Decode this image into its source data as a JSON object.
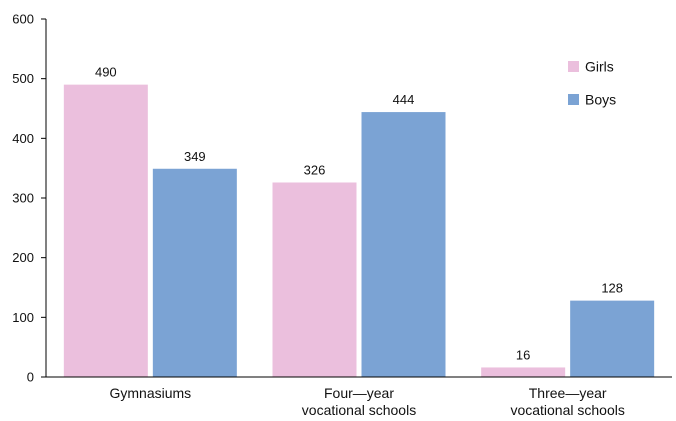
{
  "chart_data": {
    "type": "bar",
    "title": "",
    "xlabel": "",
    "ylabel": "",
    "categories": [
      [
        "Gymnasiums"
      ],
      [
        "Four—year",
        "vocational schools"
      ],
      [
        "Three—year",
        "vocational schools"
      ]
    ],
    "series": [
      {
        "name": "Girls",
        "values": [
          490,
          326,
          16
        ],
        "color": "#ebbfdd"
      },
      {
        "name": "Boys",
        "values": [
          349,
          444,
          128
        ],
        "color": "#7ba3d4"
      }
    ],
    "ylim": [
      0,
      600
    ],
    "yticks": [
      0,
      100,
      200,
      300,
      400,
      500,
      600
    ],
    "grid": false,
    "legend_position": "top-right"
  },
  "colors": {
    "axis": "#000000",
    "legend_background": "#ffffff"
  }
}
